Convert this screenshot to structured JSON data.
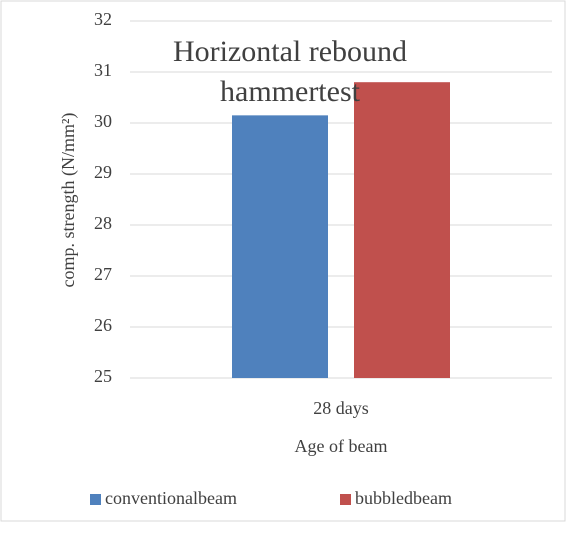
{
  "chart_data": {
    "type": "bar",
    "title": "Horizontal rebound hammertest",
    "x_label": "Age of beam",
    "y_label": "comp. strength (N/mm²)",
    "categories": [
      "28 days"
    ],
    "series": [
      {
        "name": "conventionalbeam",
        "color": "#4f81bd",
        "values": [
          30.15
        ]
      },
      {
        "name": "bubbledbeam",
        "color": "#c0504d",
        "values": [
          30.8
        ]
      }
    ],
    "ylim": [
      25,
      32
    ],
    "yticks": [
      25,
      26,
      27,
      28,
      29,
      30,
      31,
      32
    ],
    "grid": true,
    "legend": "bottom"
  }
}
